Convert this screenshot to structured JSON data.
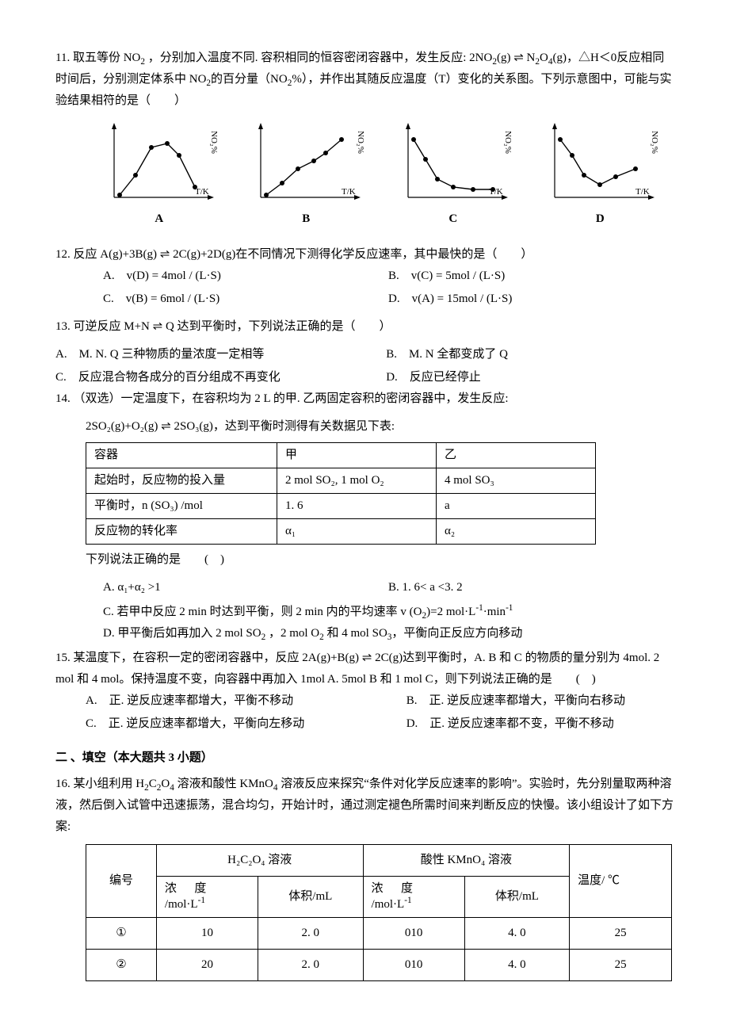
{
  "q11": {
    "num": "11.",
    "text_html": "取五等份 NO<sub>2</sub> ，分别加入温度不同. 容积相同的恒容密闭容器中，发生反应: 2NO<sub>2</sub>(g) ⇌ N<sub>2</sub>O<sub>4</sub>(g)，△H＜0反应相同时间后，分别测定体系中 NO<sub>2</sub>的百分量（NO<sub>2</sub>%），并作出其随反应温度（T）变化的关系图。下列示意图中，可能与实验结果相符的是（　　）",
    "charts": {
      "width": 150,
      "height": 110,
      "bg": "#ffffff",
      "axis_color": "#000000",
      "line_color": "#000000",
      "marker_size": 3,
      "xlabel": "T/K",
      "ylabel": "NO₂%",
      "items": [
        {
          "label": "A",
          "pts": [
            [
              25,
              95
            ],
            [
              45,
              70
            ],
            [
              65,
              35
            ],
            [
              85,
              30
            ],
            [
              100,
              45
            ],
            [
              120,
              85
            ]
          ]
        },
        {
          "label": "B",
          "pts": [
            [
              25,
              95
            ],
            [
              45,
              80
            ],
            [
              65,
              62
            ],
            [
              85,
              52
            ],
            [
              100,
              42
            ],
            [
              120,
              25
            ]
          ]
        },
        {
          "label": "C",
          "pts": [
            [
              25,
              25
            ],
            [
              40,
              50
            ],
            [
              55,
              75
            ],
            [
              75,
              85
            ],
            [
              100,
              88
            ],
            [
              125,
              88
            ]
          ]
        },
        {
          "label": "D",
          "pts": [
            [
              25,
              25
            ],
            [
              40,
              45
            ],
            [
              55,
              70
            ],
            [
              75,
              82
            ],
            [
              95,
              72
            ],
            [
              120,
              62
            ]
          ]
        }
      ]
    }
  },
  "q12": {
    "num": "12.",
    "text": "反应 A(g)+3B(g) ⇌ 2C(g)+2D(g)在不同情况下测得化学反应速率，其中最快的是（　　）",
    "opts": {
      "a": "A.　v(D) = 4mol / (L·S)",
      "b": "B.　v(C) = 5mol / (L·S)",
      "c": "C.　v(B) = 6mol / (L·S)",
      "d": "D.　v(A) = 15mol / (L·S)"
    }
  },
  "q13": {
    "num": "13.",
    "text": "可逆反应 M+N ⇌ Q 达到平衡时，下列说法正确的是（　　）",
    "opts": {
      "a": "A.　M. N. Q 三种物质的量浓度一定相等",
      "b": "B.　M. N 全都变成了 Q",
      "c": "C.　反应混合物各成分的百分组成不再变化",
      "d": "D.　反应已经停止"
    }
  },
  "q14": {
    "num": "14.",
    "text_html": "（双选）一定温度下，在容积均为 2 L 的甲. 乙两固定容积的密闭容器中，发生反应:",
    "eq": "2SO₂(g)+O₂(g) ⇌ 2SO₃(g)，达到平衡时测得有关数据见下表:",
    "table": {
      "rows": [
        [
          "容器",
          "甲",
          "乙"
        ],
        [
          "起始时，反应物的投入量",
          "2 mol SO₂, 1 mol O₂",
          "4 mol SO₃"
        ],
        [
          "平衡时，n (SO₃) /mol",
          "1. 6",
          "a"
        ],
        [
          "反应物的转化率",
          "α₁",
          "α₂"
        ]
      ]
    },
    "tail": "下列说法正确的是　　(　)",
    "opts": {
      "a": "A. α₁+α₂ >1",
      "b": "B. 1. 6< a <3. 2",
      "c_html": "C. 若甲中反应 2 min 时达到平衡，则 2 min 内的平均速率 v (O<sub>2</sub>)=2 mol·L<sup>-1</sup>·min<sup>-1</sup>",
      "d_html": "D. 甲平衡后如再加入 2 mol SO<sub>2</sub> ，2 mol O<sub>2</sub> 和 4 mol SO<sub>3</sub>，平衡向正反应方向移动"
    }
  },
  "q15": {
    "num": "15.",
    "text": "某温度下，在容积一定的密闭容器中，反应 2A(g)+B(g) ⇌ 2C(g)达到平衡时，A. B 和 C 的物质的量分别为 4mol. 2 mol 和 4 mol。保持温度不变，向容器中再加入 1mol A. 5mol B 和 1 mol C，则下列说法正确的是　　(　)",
    "opts": {
      "a": "A.　正. 逆反应速率都增大，平衡不移动",
      "b": "B.　正. 逆反应速率都增大，平衡向右移动",
      "c": "C.　正. 逆反应速率都增大，平衡向左移动",
      "d": "D.　正. 逆反应速率都不变，平衡不移动"
    }
  },
  "section2": "二 、填空（本大题共 3 小题）",
  "q16": {
    "num": "16.",
    "text_html": "某小组利用 H<sub>2</sub>C<sub>2</sub>O<sub>4</sub> 溶液和酸性 KMnO<sub>4</sub> 溶液反应来探究“条件对化学反应速率的影响”。实验时，先分别量取两种溶液，然后倒入试管中迅速振荡，混合均匀，开始计时，通过测定褪色所需时间来判断反应的快慢。该小组设计了如下方案:",
    "table": {
      "header1": {
        "c1": "编号",
        "c2": "H₂C₂O₄ 溶液",
        "c3": "酸性 KMnO₄ 溶液",
        "c4": "温度/ ℃"
      },
      "header2": {
        "conc_html": "浓&nbsp;&nbsp;&nbsp;&nbsp;&nbsp;&nbsp;度<br>/mol·L<sup>-1</sup>",
        "vol": "体积/mL"
      },
      "rows": [
        {
          "id": "①",
          "h_conc": "10",
          "h_vol": "2. 0",
          "k_conc": "010",
          "k_vol": "4. 0",
          "temp": "25"
        },
        {
          "id": "②",
          "h_conc": "20",
          "h_vol": "2. 0",
          "k_conc": "010",
          "k_vol": "4. 0",
          "temp": "25"
        }
      ]
    }
  }
}
